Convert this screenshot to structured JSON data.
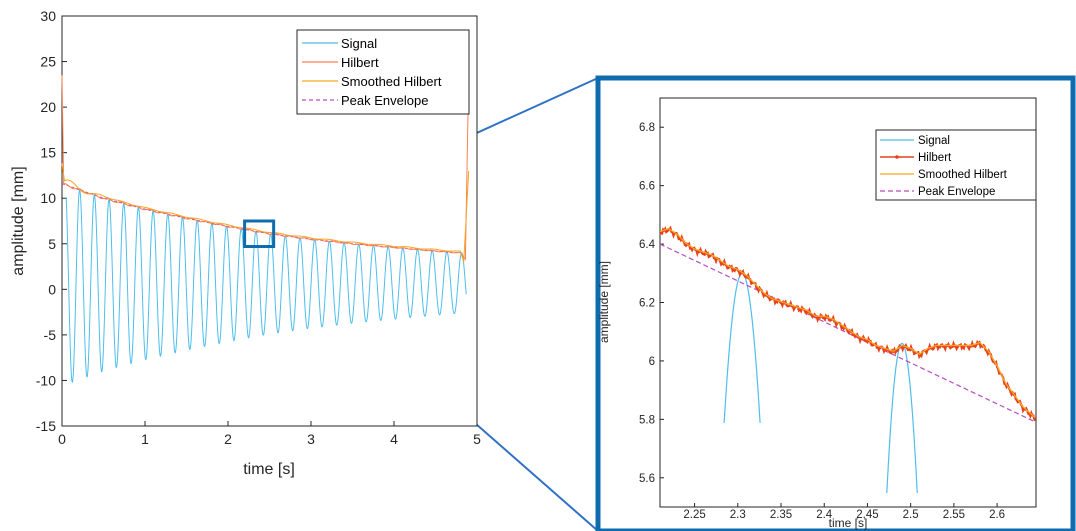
{
  "colors": {
    "signal": "#4DBEEE",
    "hilbert": "#FF7F50",
    "hilbert_inset": "#E8411B",
    "smoothed_hilbert": "#F5A623",
    "peak_envelope": "#B84DC5",
    "zoom_box": "#0E6BAE",
    "connector": "#2F72C4",
    "axis": "#262626"
  },
  "chart_data": [
    {
      "type": "line",
      "xlabel": "time [s]",
      "ylabel": "amplitude [mm]",
      "xlim": [
        0,
        5
      ],
      "ylim": [
        -15,
        30
      ],
      "xticks": [
        0,
        1,
        2,
        3,
        4,
        5
      ],
      "xtick_labels": [
        "0",
        "1",
        "2",
        "3",
        "4",
        "5"
      ],
      "yticks": [
        -15,
        -10,
        -5,
        0,
        5,
        10,
        15,
        20,
        25,
        30
      ],
      "ytick_labels": [
        "-15",
        "-10",
        "-5",
        "0",
        "5",
        "10",
        "15",
        "20",
        "25",
        "30"
      ],
      "grid": false,
      "legend_position": "top-right",
      "legend": [
        "Signal",
        "Hilbert",
        "Smoothed Hilbert",
        "Peak Envelope"
      ],
      "signal": {
        "t_start": 0.05,
        "t_end": 4.87,
        "period": 0.177,
        "initial_phase": 0.5,
        "offset_start": 0.5,
        "offset_end": 0.7,
        "amplitude_start": 11.3,
        "amplitude_end": 3.4
      },
      "envelope": {
        "t": [
          0.0,
          0.5,
          1.0,
          1.5,
          2.0,
          2.5,
          3.0,
          3.5,
          4.0,
          4.5,
          4.8
        ],
        "y": [
          11.6,
          10.0,
          8.8,
          7.8,
          6.9,
          6.1,
          5.5,
          5.0,
          4.6,
          4.2,
          4.0
        ]
      },
      "hilbert_edge_spikes": {
        "start": [
          0.0,
          23.5
        ],
        "end": [
          4.9,
          23.5
        ]
      },
      "zoom_box": {
        "x": [
          2.2,
          2.55
        ],
        "y": [
          4.7,
          7.5
        ]
      }
    },
    {
      "type": "line",
      "xlabel": "time [s]",
      "ylabel": "amplitude [mm]",
      "xlim": [
        2.21,
        2.645
      ],
      "ylim": [
        5.5,
        6.9
      ],
      "xticks": [
        2.25,
        2.3,
        2.35,
        2.4,
        2.45,
        2.5,
        2.55,
        2.6
      ],
      "xtick_labels": [
        "2.25",
        "2.3",
        "2.35",
        "2.4",
        "2.45",
        "2.5",
        "2.55",
        "2.6"
      ],
      "yticks": [
        5.6,
        5.8,
        6.0,
        6.2,
        6.4,
        6.6,
        6.8
      ],
      "ytick_labels": [
        "5.6",
        "5.8",
        "6",
        "6.2",
        "6.4",
        "6.6",
        "6.8"
      ],
      "grid": false,
      "legend_position": "top-right",
      "legend": [
        "Signal",
        "Hilbert",
        "Smoothed Hilbert",
        "Peak Envelope"
      ],
      "peak_envelope": {
        "x": [
          2.21,
          2.645
        ],
        "y": [
          6.4,
          5.79
        ]
      },
      "hilbert": {
        "x": [
          2.21,
          2.22,
          2.23,
          2.24,
          2.25,
          2.26,
          2.27,
          2.28,
          2.29,
          2.3,
          2.31,
          2.32,
          2.33,
          2.34,
          2.35,
          2.36,
          2.37,
          2.38,
          2.39,
          2.4,
          2.41,
          2.42,
          2.43,
          2.44,
          2.45,
          2.46,
          2.47,
          2.48,
          2.49,
          2.5,
          2.51,
          2.52,
          2.53,
          2.54,
          2.55,
          2.56,
          2.57,
          2.58,
          2.59,
          2.6,
          2.61,
          2.62,
          2.63,
          2.645
        ],
        "y": [
          6.44,
          6.45,
          6.43,
          6.4,
          6.38,
          6.37,
          6.36,
          6.34,
          6.32,
          6.31,
          6.29,
          6.26,
          6.23,
          6.21,
          6.2,
          6.19,
          6.18,
          6.17,
          6.15,
          6.15,
          6.14,
          6.12,
          6.1,
          6.08,
          6.07,
          6.05,
          6.04,
          6.03,
          6.05,
          6.04,
          6.02,
          6.04,
          6.05,
          6.05,
          6.05,
          6.05,
          6.05,
          6.06,
          6.03,
          5.98,
          5.92,
          5.88,
          5.84,
          5.8
        ]
      },
      "signal_peaks": [
        {
          "t": 2.305,
          "y": 6.3,
          "halfwidth": 0.013
        },
        {
          "t": 2.49,
          "y": 6.06,
          "halfwidth": 0.011
        }
      ]
    }
  ]
}
